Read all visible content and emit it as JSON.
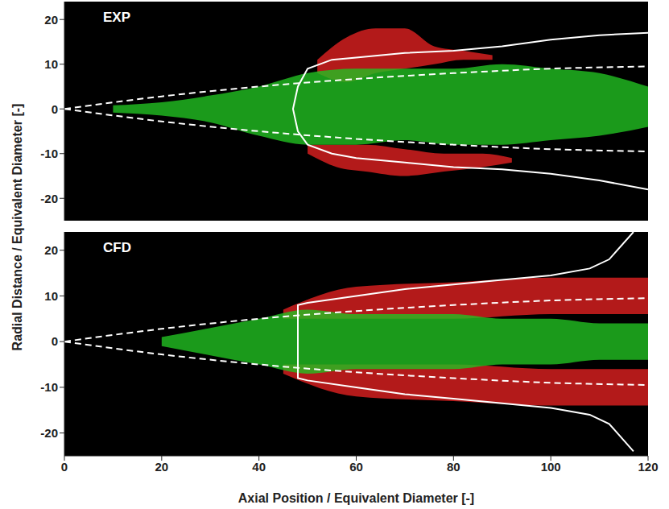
{
  "chart_data": [
    {
      "type": "area",
      "title": "EXP",
      "tick_labels": "y",
      "grid": false,
      "xlim": [
        0,
        120
      ],
      "xticks": [
        0,
        20,
        40,
        60,
        80,
        100,
        120
      ],
      "ylim": [
        -25,
        24
      ],
      "yticks": [
        -20,
        -10,
        0,
        10,
        20
      ],
      "series": [
        {
          "type": "range_area",
          "color": "#e02020",
          "x": [
            52,
            58,
            64,
            70,
            76,
            82,
            88
          ],
          "values": [
            [
              8,
              11
            ],
            [
              6,
              16
            ],
            [
              8,
              18
            ],
            [
              9,
              18
            ],
            [
              10,
              14
            ],
            [
              11,
              13
            ],
            [
              11,
              12
            ]
          ]
        },
        {
          "type": "range_area",
          "color": "#e02020",
          "x": [
            50,
            56,
            62,
            70,
            78,
            86,
            92
          ],
          "values": [
            [
              -10,
              -8
            ],
            [
              -13,
              -8
            ],
            [
              -14,
              -8
            ],
            [
              -15,
              -9
            ],
            [
              -14,
              -10
            ],
            [
              -13,
              -10
            ],
            [
              -12,
              -11
            ]
          ]
        },
        {
          "type": "range_area",
          "color": "#22c022",
          "x": [
            10,
            20,
            30,
            40,
            50,
            60,
            70,
            80,
            90,
            100,
            110,
            120
          ],
          "values": [
            [
              -0.8,
              0.8
            ],
            [
              -1.5,
              1.5
            ],
            [
              -3,
              3
            ],
            [
              -6,
              5
            ],
            [
              -8,
              8
            ],
            [
              -8,
              9
            ],
            [
              -7,
              9
            ],
            [
              -8,
              9
            ],
            [
              -8,
              10
            ],
            [
              -7,
              9
            ],
            [
              -6,
              8
            ],
            [
              -4,
              5
            ]
          ]
        },
        {
          "type": "line",
          "color": "#ffffff",
          "line_style": "dashed",
          "x": [
            0,
            20,
            40,
            60,
            80,
            100,
            120
          ],
          "values": [
            0,
            2.8,
            5,
            6.7,
            8,
            9,
            9.5
          ]
        },
        {
          "type": "line",
          "color": "#ffffff",
          "line_style": "dashed",
          "x": [
            0,
            20,
            40,
            60,
            80,
            100,
            120
          ],
          "values": [
            0,
            -2.8,
            -5,
            -6.7,
            -8,
            -9,
            -9.5
          ]
        },
        {
          "type": "line",
          "color": "#ffffff",
          "line_style": "solid",
          "x": [
            120,
            110,
            100,
            90,
            80,
            70,
            60,
            55,
            50,
            48,
            47,
            48,
            50,
            55,
            60,
            70,
            80,
            90,
            100,
            110,
            120
          ],
          "values": [
            17,
            16.5,
            15.5,
            14,
            13,
            12.5,
            11.5,
            11,
            9,
            5,
            0,
            -5,
            -8,
            -10,
            -11,
            -12,
            -13,
            -13.5,
            -14.5,
            -16,
            -18
          ]
        }
      ]
    },
    {
      "type": "area",
      "title": "CFD",
      "grid": false,
      "xlabel": "Axial Position / Equivalent Diameter [-]",
      "ylabel": "Radial Distance / Equivalent Diameter [-]",
      "xlim": [
        0,
        120
      ],
      "xticks": [
        0,
        20,
        40,
        60,
        80,
        100,
        120
      ],
      "ylim": [
        -25,
        24
      ],
      "yticks": [
        -20,
        -10,
        0,
        10,
        20
      ],
      "series": [
        {
          "type": "range_area",
          "color": "#e02020",
          "x": [
            45,
            60,
            80,
            100,
            120
          ],
          "values": [
            [
              5,
              7
            ],
            [
              5,
              12
            ],
            [
              5,
              13
            ],
            [
              6,
              14
            ],
            [
              6,
              14
            ]
          ]
        },
        {
          "type": "range_area",
          "color": "#e02020",
          "x": [
            45,
            60,
            80,
            100,
            120
          ],
          "values": [
            [
              -7,
              -5
            ],
            [
              -12,
              -5
            ],
            [
              -13,
              -5
            ],
            [
              -14,
              -6
            ],
            [
              -14,
              -6
            ]
          ]
        },
        {
          "type": "range_area",
          "color": "#22c022",
          "x": [
            20,
            30,
            40,
            50,
            60,
            70,
            80,
            90,
            100,
            110,
            120
          ],
          "values": [
            [
              -1,
              1
            ],
            [
              -3,
              3
            ],
            [
              -5,
              5
            ],
            [
              -7,
              7
            ],
            [
              -6,
              6
            ],
            [
              -6,
              6
            ],
            [
              -6,
              6
            ],
            [
              -5,
              5
            ],
            [
              -5,
              5
            ],
            [
              -4,
              4
            ],
            [
              -4,
              4
            ]
          ]
        },
        {
          "type": "line",
          "color": "#ffffff",
          "line_style": "dashed",
          "x": [
            0,
            20,
            40,
            60,
            80,
            100,
            120
          ],
          "values": [
            0,
            2.8,
            5,
            6.7,
            8,
            9,
            9.5
          ]
        },
        {
          "type": "line",
          "color": "#ffffff",
          "line_style": "dashed",
          "x": [
            0,
            20,
            40,
            60,
            80,
            100,
            120
          ],
          "values": [
            0,
            -2.8,
            -5,
            -6.7,
            -8,
            -9,
            -9.5
          ]
        },
        {
          "type": "line",
          "color": "#ffffff",
          "line_style": "solid",
          "x": [
            117,
            112,
            108,
            100,
            90,
            80,
            70,
            60,
            50,
            48,
            48,
            48,
            50,
            60,
            70,
            80,
            90,
            100,
            108,
            112,
            117
          ],
          "values": [
            24,
            18,
            16,
            14.5,
            13.5,
            12.5,
            11.5,
            10,
            8.5,
            8,
            0,
            -8,
            -8.5,
            -10,
            -11.5,
            -12.5,
            -13.5,
            -14.5,
            -16,
            -18,
            -24
          ]
        }
      ]
    }
  ]
}
